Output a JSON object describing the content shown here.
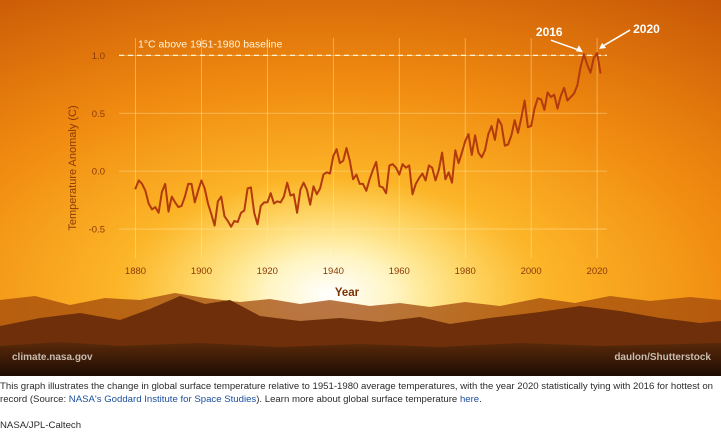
{
  "chart_data": {
    "type": "line",
    "xlabel": "Year",
    "ylabel": "Temperature Anomaly (C)",
    "xlim": [
      1875,
      2023
    ],
    "ylim": [
      -0.75,
      1.15
    ],
    "xticks": [
      1880,
      1900,
      1920,
      1940,
      1960,
      1980,
      2000,
      2020
    ],
    "yticks": [
      -0.5,
      0.0,
      0.5,
      1.0
    ],
    "ytick_labels": [
      "-0.5",
      "0.0",
      "0.5",
      "1.0"
    ],
    "grid": true,
    "line_color": "#b23a0c",
    "baseline": {
      "value": 1.0,
      "label": "1°C above 1951-1980 baseline"
    },
    "annotations": [
      {
        "label": "2016",
        "x": 2016,
        "y": 1.01
      },
      {
        "label": "2020",
        "x": 2020,
        "y": 1.02
      }
    ],
    "series": [
      {
        "x": [
          1880,
          1881,
          1882,
          1883,
          1884,
          1885,
          1886,
          1887,
          1888,
          1889,
          1890,
          1891,
          1892,
          1893,
          1894,
          1895,
          1896,
          1897,
          1898,
          1899,
          1900,
          1901,
          1902,
          1903,
          1904,
          1905,
          1906,
          1907,
          1908,
          1909,
          1910,
          1911,
          1912,
          1913,
          1914,
          1915,
          1916,
          1917,
          1918,
          1919,
          1920,
          1921,
          1922,
          1923,
          1924,
          1925,
          1926,
          1927,
          1928,
          1929,
          1930,
          1931,
          1932,
          1933,
          1934,
          1935,
          1936,
          1937,
          1938,
          1939,
          1940,
          1941,
          1942,
          1943,
          1944,
          1945,
          1946,
          1947,
          1948,
          1949,
          1950,
          1951,
          1952,
          1953,
          1954,
          1955,
          1956,
          1957,
          1958,
          1959,
          1960,
          1961,
          1962,
          1963,
          1964,
          1965,
          1966,
          1967,
          1968,
          1969,
          1970,
          1971,
          1972,
          1973,
          1974,
          1975,
          1976,
          1977,
          1978,
          1979,
          1980,
          1981,
          1982,
          1983,
          1984,
          1985,
          1986,
          1987,
          1988,
          1989,
          1990,
          1991,
          1992,
          1993,
          1994,
          1995,
          1996,
          1997,
          1998,
          1999,
          2000,
          2001,
          2002,
          2003,
          2004,
          2005,
          2006,
          2007,
          2008,
          2009,
          2010,
          2011,
          2012,
          2013,
          2014,
          2015,
          2016,
          2017,
          2018,
          2019,
          2020,
          2021
        ],
        "values": [
          -0.15,
          -0.08,
          -0.11,
          -0.17,
          -0.28,
          -0.33,
          -0.31,
          -0.36,
          -0.18,
          -0.11,
          -0.35,
          -0.22,
          -0.27,
          -0.31,
          -0.3,
          -0.22,
          -0.11,
          -0.11,
          -0.27,
          -0.17,
          -0.08,
          -0.15,
          -0.28,
          -0.37,
          -0.47,
          -0.26,
          -0.22,
          -0.39,
          -0.43,
          -0.48,
          -0.43,
          -0.44,
          -0.36,
          -0.34,
          -0.15,
          -0.14,
          -0.36,
          -0.46,
          -0.3,
          -0.27,
          -0.27,
          -0.19,
          -0.28,
          -0.26,
          -0.27,
          -0.22,
          -0.1,
          -0.21,
          -0.2,
          -0.36,
          -0.16,
          -0.1,
          -0.16,
          -0.29,
          -0.13,
          -0.2,
          -0.15,
          -0.03,
          -0.01,
          -0.02,
          0.13,
          0.19,
          0.07,
          0.09,
          0.2,
          0.09,
          -0.07,
          -0.03,
          -0.11,
          -0.11,
          -0.17,
          -0.07,
          0.01,
          0.08,
          -0.13,
          -0.14,
          -0.19,
          0.05,
          0.06,
          0.03,
          -0.03,
          0.06,
          0.03,
          0.05,
          -0.2,
          -0.11,
          -0.06,
          -0.02,
          -0.08,
          0.05,
          0.03,
          -0.08,
          0.01,
          0.16,
          -0.07,
          -0.01,
          -0.1,
          0.18,
          0.07,
          0.16,
          0.26,
          0.32,
          0.14,
          0.31,
          0.16,
          0.12,
          0.18,
          0.32,
          0.39,
          0.27,
          0.45,
          0.4,
          0.22,
          0.23,
          0.31,
          0.44,
          0.33,
          0.46,
          0.61,
          0.38,
          0.39,
          0.54,
          0.63,
          0.62,
          0.53,
          0.68,
          0.64,
          0.66,
          0.54,
          0.65,
          0.72,
          0.61,
          0.64,
          0.67,
          0.74,
          0.9,
          1.01,
          0.92,
          0.85,
          0.98,
          1.02,
          0.85
        ]
      }
    ]
  },
  "figure": {
    "credit_left": "climate.nasa.gov",
    "credit_right": "daulon/Shutterstock"
  },
  "caption": {
    "text_before_link1": "This graph illustrates the change in global surface temperature relative to 1951-1980 average temperatures, with the year 2020 statistically tying with 2016 for hottest on record (Source: ",
    "link1": "NASA's Goddard Institute for Space Studies",
    "text_between": "). Learn more about global surface temperature ",
    "link2": "here",
    "text_after": ".",
    "credit": "NASA/JPL-Caltech"
  }
}
